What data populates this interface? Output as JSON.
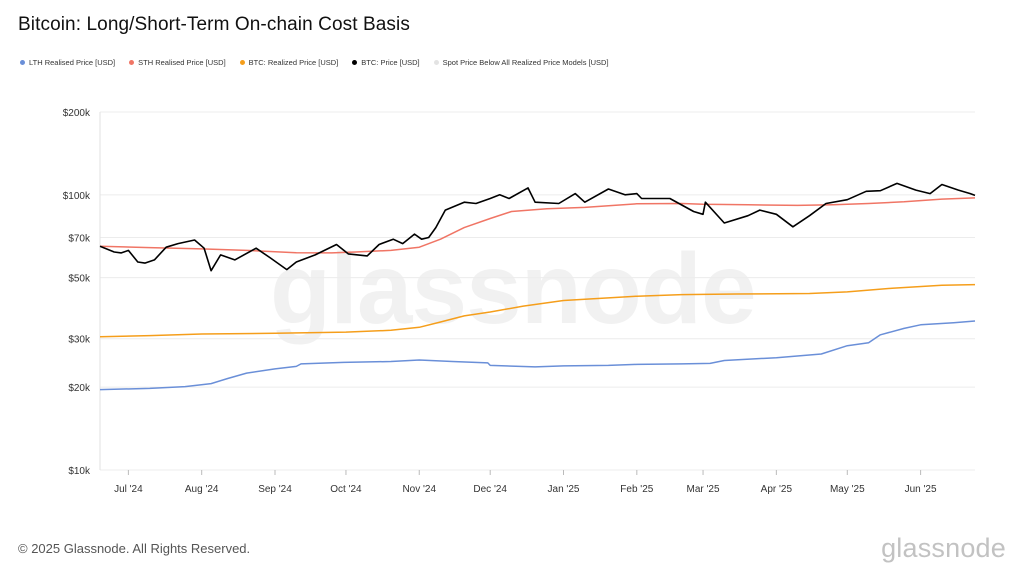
{
  "title": "Bitcoin: Long/Short-Term On-chain Cost Basis",
  "footer": {
    "copyright": "© 2025 Glassnode. All Rights Reserved.",
    "logo": "glassnode",
    "watermark": "glassnode"
  },
  "colors": {
    "lth": "#6a8fd8",
    "sth": "#f07565",
    "realized": "#f59e1b",
    "price": "#000000",
    "spot_below": "#e3e3e3",
    "grid": "#ececec",
    "axis_text": "#333333"
  },
  "chart_data": {
    "type": "line",
    "title": "Bitcoin: Long/Short-Term On-chain Cost Basis",
    "y_scale": "log",
    "ylim": [
      10000,
      200000
    ],
    "y_ticks": [
      {
        "value": 200000,
        "label": "$200k"
      },
      {
        "value": 100000,
        "label": "$100k"
      },
      {
        "value": 70000,
        "label": "$70k"
      },
      {
        "value": 50000,
        "label": "$50k"
      },
      {
        "value": 30000,
        "label": "$30k"
      },
      {
        "value": 20000,
        "label": "$20k"
      },
      {
        "value": 10000,
        "label": "$10k"
      }
    ],
    "xlim": [
      "2024-06-19",
      "2025-06-24"
    ],
    "x_ticks": [
      {
        "date": "2024-07-01",
        "label": "Jul '24"
      },
      {
        "date": "2024-08-01",
        "label": "Aug '24"
      },
      {
        "date": "2024-09-01",
        "label": "Sep '24"
      },
      {
        "date": "2024-10-01",
        "label": "Oct '24"
      },
      {
        "date": "2024-11-01",
        "label": "Nov '24"
      },
      {
        "date": "2024-12-01",
        "label": "Dec '24"
      },
      {
        "date": "2025-01-01",
        "label": "Jan '25"
      },
      {
        "date": "2025-02-01",
        "label": "Feb '25"
      },
      {
        "date": "2025-03-01",
        "label": "Mar '25"
      },
      {
        "date": "2025-04-01",
        "label": "Apr '25"
      },
      {
        "date": "2025-05-01",
        "label": "May '25"
      },
      {
        "date": "2025-06-01",
        "label": "Jun '25"
      }
    ],
    "legend_position": "top-left",
    "series": [
      {
        "name": "LTH Realised Price [USD]",
        "key": "lth",
        "points": [
          [
            "2024-06-19",
            19600
          ],
          [
            "2024-07-10",
            19800
          ],
          [
            "2024-07-25",
            20100
          ],
          [
            "2024-08-05",
            20600
          ],
          [
            "2024-08-12",
            21500
          ],
          [
            "2024-08-20",
            22500
          ],
          [
            "2024-09-01",
            23300
          ],
          [
            "2024-09-10",
            23800
          ],
          [
            "2024-09-12",
            24300
          ],
          [
            "2024-09-30",
            24600
          ],
          [
            "2024-10-20",
            24800
          ],
          [
            "2024-11-01",
            25100
          ],
          [
            "2024-11-15",
            24800
          ],
          [
            "2024-11-30",
            24500
          ],
          [
            "2024-12-01",
            24000
          ],
          [
            "2024-12-20",
            23700
          ],
          [
            "2025-01-01",
            23900
          ],
          [
            "2025-01-20",
            24000
          ],
          [
            "2025-02-01",
            24200
          ],
          [
            "2025-02-20",
            24300
          ],
          [
            "2025-03-04",
            24400
          ],
          [
            "2025-03-10",
            25000
          ],
          [
            "2025-04-01",
            25600
          ],
          [
            "2025-04-20",
            26400
          ],
          [
            "2025-05-01",
            28300
          ],
          [
            "2025-05-10",
            29000
          ],
          [
            "2025-05-15",
            31000
          ],
          [
            "2025-05-25",
            32700
          ],
          [
            "2025-06-01",
            33700
          ],
          [
            "2025-06-15",
            34300
          ],
          [
            "2025-06-24",
            34800
          ]
        ]
      },
      {
        "name": "STH Realised Price [USD]",
        "key": "sth",
        "points": [
          [
            "2024-06-19",
            65000
          ],
          [
            "2024-07-10",
            64300
          ],
          [
            "2024-08-01",
            63600
          ],
          [
            "2024-08-20",
            62800
          ],
          [
            "2024-09-10",
            61600
          ],
          [
            "2024-09-25",
            61500
          ],
          [
            "2024-10-05",
            62000
          ],
          [
            "2024-10-20",
            62800
          ],
          [
            "2024-11-01",
            64500
          ],
          [
            "2024-11-10",
            69000
          ],
          [
            "2024-11-20",
            76000
          ],
          [
            "2024-12-01",
            82000
          ],
          [
            "2024-12-10",
            87000
          ],
          [
            "2024-12-25",
            89000
          ],
          [
            "2025-01-10",
            90000
          ],
          [
            "2025-02-01",
            92800
          ],
          [
            "2025-02-20",
            93000
          ],
          [
            "2025-03-01",
            92400
          ],
          [
            "2025-03-20",
            92000
          ],
          [
            "2025-04-10",
            91500
          ],
          [
            "2025-04-25",
            92000
          ],
          [
            "2025-05-10",
            93000
          ],
          [
            "2025-05-25",
            94300
          ],
          [
            "2025-06-10",
            96500
          ],
          [
            "2025-06-24",
            97500
          ]
        ]
      },
      {
        "name": "BTC: Realized Price [USD]",
        "key": "realized",
        "points": [
          [
            "2024-06-19",
            30500
          ],
          [
            "2024-07-10",
            30800
          ],
          [
            "2024-08-01",
            31200
          ],
          [
            "2024-09-01",
            31400
          ],
          [
            "2024-10-01",
            31700
          ],
          [
            "2024-10-20",
            32200
          ],
          [
            "2024-11-01",
            33000
          ],
          [
            "2024-11-10",
            34500
          ],
          [
            "2024-11-20",
            36300
          ],
          [
            "2024-12-01",
            37500
          ],
          [
            "2024-12-15",
            39400
          ],
          [
            "2025-01-01",
            41300
          ],
          [
            "2025-01-20",
            42200
          ],
          [
            "2025-02-01",
            42800
          ],
          [
            "2025-02-20",
            43400
          ],
          [
            "2025-03-15",
            43600
          ],
          [
            "2025-04-15",
            43800
          ],
          [
            "2025-05-01",
            44400
          ],
          [
            "2025-05-20",
            45800
          ],
          [
            "2025-06-10",
            46900
          ],
          [
            "2025-06-24",
            47200
          ]
        ]
      },
      {
        "name": "BTC: Price [USD]",
        "key": "price",
        "points": [
          [
            "2024-06-19",
            65000
          ],
          [
            "2024-06-25",
            62000
          ],
          [
            "2024-06-28",
            61500
          ],
          [
            "2024-07-01",
            62800
          ],
          [
            "2024-07-05",
            57000
          ],
          [
            "2024-07-08",
            56500
          ],
          [
            "2024-07-12",
            58000
          ],
          [
            "2024-07-17",
            64500
          ],
          [
            "2024-07-22",
            66500
          ],
          [
            "2024-07-29",
            68500
          ],
          [
            "2024-08-02",
            64000
          ],
          [
            "2024-08-05",
            53000
          ],
          [
            "2024-08-09",
            60500
          ],
          [
            "2024-08-15",
            58000
          ],
          [
            "2024-08-24",
            64000
          ],
          [
            "2024-08-30",
            59000
          ],
          [
            "2024-09-06",
            53500
          ],
          [
            "2024-09-10",
            57000
          ],
          [
            "2024-09-18",
            60500
          ],
          [
            "2024-09-27",
            66000
          ],
          [
            "2024-10-02",
            61000
          ],
          [
            "2024-10-10",
            60000
          ],
          [
            "2024-10-15",
            66000
          ],
          [
            "2024-10-21",
            69000
          ],
          [
            "2024-10-25",
            66500
          ],
          [
            "2024-10-30",
            72000
          ],
          [
            "2024-11-02",
            69000
          ],
          [
            "2024-11-05",
            70000
          ],
          [
            "2024-11-08",
            76000
          ],
          [
            "2024-11-12",
            88000
          ],
          [
            "2024-11-20",
            94000
          ],
          [
            "2024-11-25",
            93000
          ],
          [
            "2024-12-01",
            97000
          ],
          [
            "2024-12-05",
            100000
          ],
          [
            "2024-12-09",
            97000
          ],
          [
            "2024-12-17",
            106000
          ],
          [
            "2024-12-20",
            94000
          ],
          [
            "2024-12-30",
            93000
          ],
          [
            "2025-01-06",
            101000
          ],
          [
            "2025-01-10",
            94000
          ],
          [
            "2025-01-20",
            105000
          ],
          [
            "2025-01-27",
            100000
          ],
          [
            "2025-02-01",
            101000
          ],
          [
            "2025-02-03",
            97000
          ],
          [
            "2025-02-15",
            97000
          ],
          [
            "2025-02-25",
            87000
          ],
          [
            "2025-03-01",
            85000
          ],
          [
            "2025-03-02",
            94000
          ],
          [
            "2025-03-10",
            79000
          ],
          [
            "2025-03-20",
            84000
          ],
          [
            "2025-03-25",
            88000
          ],
          [
            "2025-04-01",
            85000
          ],
          [
            "2025-04-08",
            76500
          ],
          [
            "2025-04-15",
            84000
          ],
          [
            "2025-04-22",
            93000
          ],
          [
            "2025-05-01",
            96000
          ],
          [
            "2025-05-09",
            103000
          ],
          [
            "2025-05-15",
            103500
          ],
          [
            "2025-05-22",
            110000
          ],
          [
            "2025-05-30",
            104000
          ],
          [
            "2025-06-05",
            101000
          ],
          [
            "2025-06-10",
            109000
          ],
          [
            "2025-06-17",
            104000
          ],
          [
            "2025-06-22",
            101000
          ],
          [
            "2025-06-24",
            99500
          ]
        ]
      },
      {
        "name": "Spot Price Below All Realized Price Models [USD]",
        "key": "spot_below",
        "points": []
      }
    ]
  }
}
